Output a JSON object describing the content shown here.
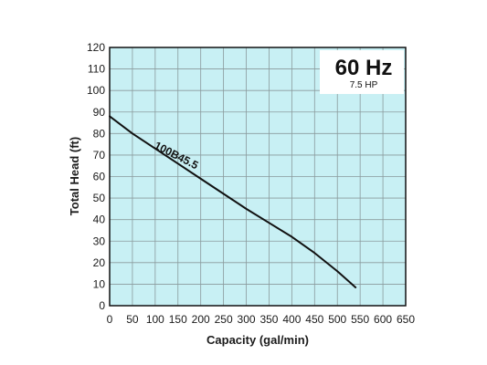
{
  "chart_data": {
    "type": "line",
    "title": "",
    "xlabel": "Capacity (gal/min)",
    "ylabel": "Total Head (ft)",
    "xlim": [
      0,
      650
    ],
    "ylim": [
      0,
      120
    ],
    "x_ticks": [
      0,
      50,
      100,
      150,
      200,
      250,
      300,
      350,
      400,
      450,
      500,
      550,
      600,
      650
    ],
    "y_ticks": [
      0,
      10,
      20,
      30,
      40,
      50,
      60,
      70,
      80,
      90,
      100,
      110,
      120
    ],
    "grid": true,
    "frequency_label": "60 Hz",
    "power_label": "7.5 HP",
    "series": [
      {
        "name": "100B45.5",
        "x": [
          0,
          50,
          100,
          150,
          200,
          250,
          300,
          350,
          400,
          450,
          500,
          540
        ],
        "y": [
          88,
          80,
          73,
          66,
          59,
          52,
          45,
          38.5,
          32,
          24.5,
          16,
          8.5
        ]
      }
    ]
  },
  "colors": {
    "plot_background": "#c8f0f4",
    "grid": "#8a9a9c",
    "curve": "#111111",
    "frame": "#111111"
  }
}
